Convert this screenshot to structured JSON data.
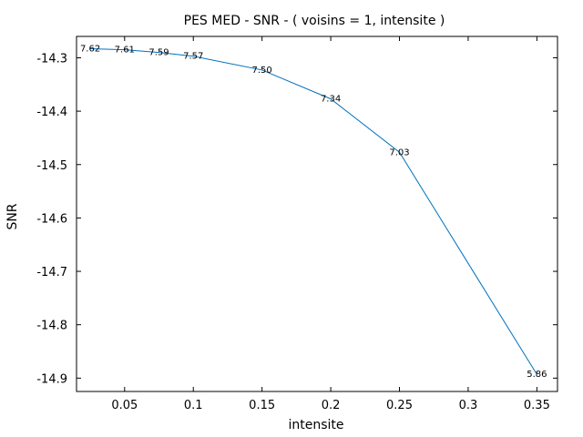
{
  "chart_data": {
    "type": "line",
    "title": "PES MED - SNR - ( voisins = 1, intensite )",
    "xlabel": "intensite",
    "ylabel": "SNR",
    "xlim": [
      0.015,
      0.365
    ],
    "ylim": [
      -14.925,
      -14.26
    ],
    "xticks": [
      "0.05",
      "0.1",
      "0.15",
      "0.2",
      "0.25",
      "0.3",
      "0.35"
    ],
    "yticks": [
      "-14.3",
      "-14.4",
      "-14.5",
      "-14.6",
      "-14.7",
      "-14.8",
      "-14.9"
    ],
    "grid": false,
    "series": [
      {
        "color": "#0072bd",
        "x": [
          0.025,
          0.05,
          0.075,
          0.1,
          0.15,
          0.2,
          0.25,
          0.35
        ],
        "y": [
          -14.283,
          -14.285,
          -14.29,
          -14.297,
          -14.323,
          -14.377,
          -14.477,
          -14.893
        ],
        "labels": [
          "7.62",
          "7.61",
          "7.59",
          "7.57",
          "7.50",
          "7.34",
          "7.03",
          "5.86"
        ]
      }
    ]
  }
}
